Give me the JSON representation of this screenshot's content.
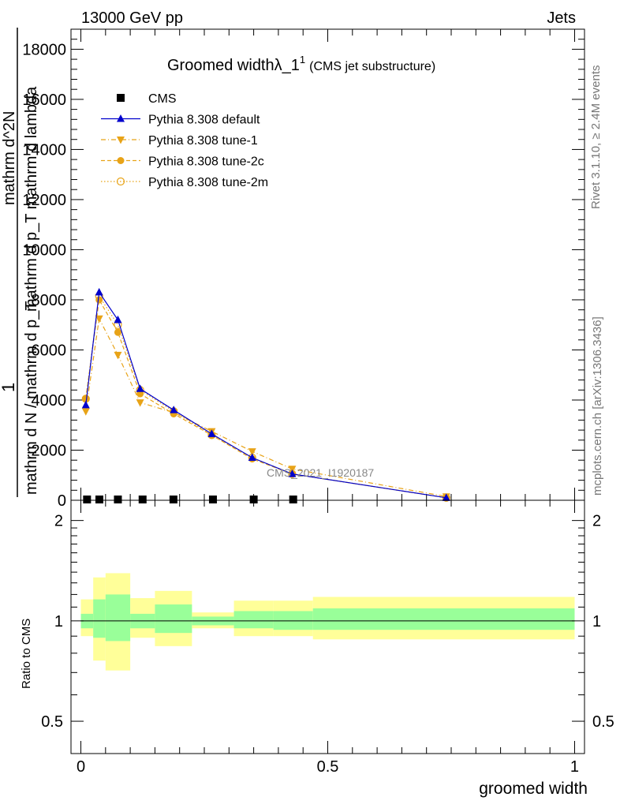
{
  "header": {
    "energy_label": "13000 GeV pp",
    "category_label": "Jets"
  },
  "side_labels": {
    "rivet": "Rivet 3.1.10, ≥ 2.4M events",
    "mcplots": "mcplots.cern.ch [arXiv:1306.3436]"
  },
  "chart_data": [
    {
      "type": "line",
      "title_main": "Groomed width",
      "title_lambda": "λ_1",
      "title_sup": "1",
      "title_suffix": "(CMS jet substructure)",
      "ylabel_parts": [
        "1",
        "mathrm d N / mathrm d p_T",
        "mathrm d^2N",
        "mathrm d p_T mathrm d lambda"
      ],
      "watermark": "CMS_2021_I1920187",
      "xlim": [
        -0.02,
        1.02
      ],
      "ylim": [
        0,
        18800
      ],
      "yticks": [
        0,
        2000,
        4000,
        6000,
        8000,
        10000,
        12000,
        14000,
        16000,
        18000
      ],
      "ytick_labels": [
        "0",
        "2000",
        "4000",
        "6000",
        "8000",
        "10000",
        "12000",
        "14000",
        "16000",
        "18000"
      ],
      "legend_position": "top-left",
      "colors": {
        "cms": "#000000",
        "default": "#0000cc",
        "tunes": "#e8a317"
      },
      "series": [
        {
          "name": "CMS",
          "style": "square",
          "x": [
            0.0125,
            0.0375,
            0.075,
            0.125,
            0.1875,
            0.2675,
            0.35,
            0.43
          ],
          "y": [
            0,
            0,
            0,
            0,
            0,
            0,
            0,
            0
          ]
        },
        {
          "name": "Pythia 8.308 default",
          "style": "solid-triangle",
          "x": [
            0.01,
            0.037,
            0.075,
            0.12,
            0.188,
            0.265,
            0.347,
            0.428,
            0.74
          ],
          "y": [
            3800,
            8300,
            7200,
            4450,
            3600,
            2650,
            1700,
            1050,
            100
          ]
        },
        {
          "name": "Pythia 8.308 tune-1",
          "style": "dashdot-triangle-down",
          "x": [
            0.01,
            0.037,
            0.075,
            0.12,
            0.188,
            0.265,
            0.347,
            0.428,
            0.74
          ],
          "y": [
            3550,
            7250,
            5800,
            3900,
            3500,
            2750,
            1950,
            1250,
            150
          ]
        },
        {
          "name": "Pythia 8.308 tune-2c",
          "style": "dashed-circle",
          "x": [
            0.01,
            0.037,
            0.075,
            0.12,
            0.188,
            0.265,
            0.347,
            0.428,
            0.74
          ],
          "y": [
            4050,
            8000,
            6700,
            4250,
            3450,
            2600,
            1650,
            1050,
            100
          ]
        },
        {
          "name": "Pythia 8.308 tune-2m",
          "style": "dotted-open-circle",
          "x": [
            0.01,
            0.037,
            0.075,
            0.12,
            0.188,
            0.265,
            0.347,
            0.428,
            0.74
          ],
          "y": [
            4050,
            8150,
            7000,
            4400,
            3550,
            2600,
            1700,
            1050,
            100
          ]
        }
      ]
    },
    {
      "type": "area",
      "ylabel": "Ratio to CMS",
      "xlabel": "groomed width",
      "xlim": [
        -0.02,
        1.02
      ],
      "ylim": [
        0.4,
        2.3
      ],
      "yscale": "log",
      "yticks": [
        0.5,
        1,
        2
      ],
      "ytick_labels": [
        "0.5",
        "1",
        "2"
      ],
      "xticks": [
        0,
        0.5,
        1
      ],
      "xtick_labels": [
        "0",
        "0.5",
        "1"
      ],
      "reference_line": 1,
      "band_colors": {
        "inner": "#99ff99",
        "outer": "#ffff99"
      },
      "bins": [
        {
          "x0": 0.0,
          "x1": 0.025,
          "inner": [
            0.95,
            1.05
          ],
          "outer": [
            0.9,
            1.16
          ]
        },
        {
          "x0": 0.025,
          "x1": 0.05,
          "inner": [
            0.89,
            1.16
          ],
          "outer": [
            0.76,
            1.35
          ]
        },
        {
          "x0": 0.05,
          "x1": 0.1,
          "inner": [
            0.87,
            1.2
          ],
          "outer": [
            0.71,
            1.39
          ]
        },
        {
          "x0": 0.1,
          "x1": 0.15,
          "inner": [
            0.95,
            1.05
          ],
          "outer": [
            0.89,
            1.17
          ]
        },
        {
          "x0": 0.15,
          "x1": 0.225,
          "inner": [
            0.92,
            1.12
          ],
          "outer": [
            0.84,
            1.23
          ]
        },
        {
          "x0": 0.225,
          "x1": 0.31,
          "inner": [
            0.97,
            1.03
          ],
          "outer": [
            0.95,
            1.06
          ]
        },
        {
          "x0": 0.31,
          "x1": 0.39,
          "inner": [
            0.95,
            1.07
          ],
          "outer": [
            0.9,
            1.15
          ]
        },
        {
          "x0": 0.39,
          "x1": 0.47,
          "inner": [
            0.94,
            1.07
          ],
          "outer": [
            0.9,
            1.15
          ]
        },
        {
          "x0": 0.47,
          "x1": 1.0,
          "inner": [
            0.94,
            1.09
          ],
          "outer": [
            0.88,
            1.18
          ]
        }
      ]
    }
  ]
}
